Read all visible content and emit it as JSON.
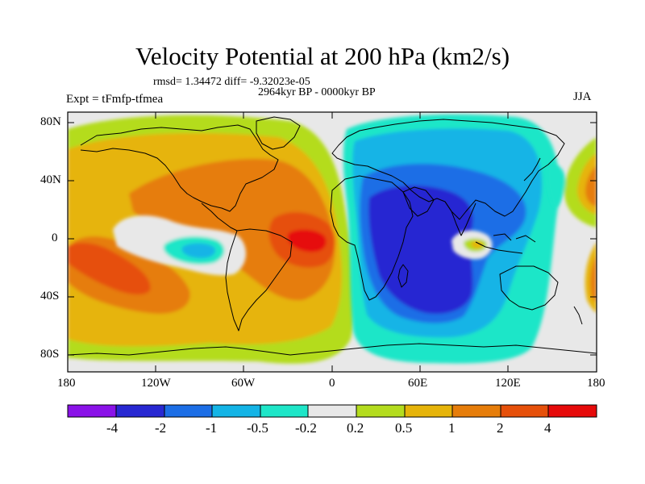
{
  "title": "Velocity Potential at 200 hPa (km2/s)",
  "stats": "rmsd= 1.34472 diff= -9.32023e-05",
  "period": "2964kyr BP - 0000kyr BP",
  "experiment": "Expt = tFmfp-tfmea",
  "season": "JJA",
  "lat_ticks": [
    "80N",
    "40N",
    "0",
    "40S",
    "80S"
  ],
  "lon_ticks": [
    "180",
    "120W",
    "60W",
    "0",
    "60E",
    "120E",
    "180"
  ],
  "colorbar": {
    "labels": [
      "-4",
      "-2",
      "-1",
      "-0.5",
      "-0.2",
      "0.2",
      "0.5",
      "1",
      "2",
      "4"
    ],
    "colors": [
      "#8a12e8",
      "#2828d2",
      "#1c6ee6",
      "#14b4e6",
      "#1ee6c8",
      "#e8e8e8",
      "#b4dc1e",
      "#e6b40a",
      "#e67d0a",
      "#e6500a",
      "#e60a0a"
    ]
  },
  "colors": {
    "ocean_bg": "#e8e8e8",
    "coast": "#000000"
  }
}
